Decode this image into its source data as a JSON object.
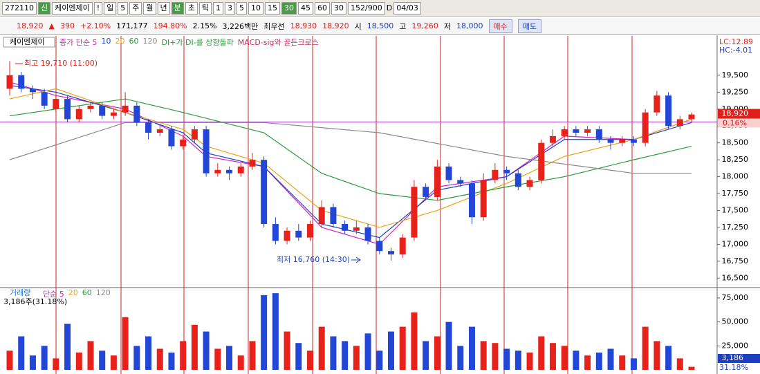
{
  "toolbar": {
    "code": "272110",
    "badge": "신",
    "name": "케이엔제이",
    "alert": "!",
    "period": "일",
    "period_n": "5",
    "buttons": [
      "주",
      "월",
      "년",
      "분",
      "초",
      "틱",
      "1",
      "3",
      "5",
      "10",
      "15",
      "30",
      "45",
      "60"
    ],
    "active_buttons": [
      3,
      11
    ],
    "count": "30",
    "range": "152/900",
    "d": "D",
    "date": "04/03"
  },
  "quote": {
    "price": "18,920",
    "arrow": "▲",
    "change": "390",
    "change_pct": "+2.10%",
    "volume": "171,177",
    "volume_ratio": "194.80%",
    "turnover": "2.15%",
    "amount": "3,226백만",
    "best_label": "최우선",
    "ask": "18,930",
    "bid": "18,920",
    "open_label": "시",
    "open": "18,500",
    "high_label": "고",
    "high": "19,260",
    "low_label": "저",
    "low": "18,000",
    "buy": "매수",
    "sell": "매도"
  },
  "chart_data": [
    {
      "type": "candlestick",
      "title": "케이엔제이",
      "signals": [
        "DI+가 DI-를 상향돌파",
        "MACD-sig와 골든크로스"
      ],
      "up_color": "#e8221b",
      "down_color": "#2247d6",
      "open": [
        19300,
        19500,
        19300,
        19250,
        19000,
        19150,
        18850,
        19000,
        19050,
        18900,
        18950,
        19050,
        18800,
        18650,
        18700,
        18450,
        18550,
        18700,
        18050,
        18100,
        18050,
        18150,
        18250,
        17300,
        17050,
        17200,
        17100,
        17300,
        17550,
        17300,
        17200,
        17250,
        17050,
        16900,
        16850,
        17100,
        17850,
        17700,
        18150,
        17950,
        17900,
        17400,
        17950,
        18100,
        18050,
        17850,
        17950,
        18500,
        18600,
        18700,
        18650,
        18700,
        18550,
        18500,
        18550,
        18500,
        18950,
        19200,
        18750,
        18850
      ],
      "high": [
        19710,
        19550,
        19350,
        19300,
        19200,
        19200,
        19050,
        19100,
        19100,
        19000,
        19250,
        19100,
        18850,
        18750,
        18750,
        18600,
        18750,
        18750,
        18200,
        18150,
        18200,
        18350,
        18300,
        17400,
        17250,
        17300,
        17350,
        17650,
        17600,
        17350,
        17350,
        17300,
        17100,
        16950,
        17150,
        17950,
        17900,
        18250,
        18200,
        18000,
        17950,
        18050,
        18200,
        18150,
        18100,
        18000,
        18550,
        18700,
        18750,
        18750,
        18750,
        18750,
        18600,
        18600,
        18600,
        19000,
        19270,
        19250,
        18900,
        18950
      ],
      "low": [
        19200,
        19250,
        19150,
        19000,
        18950,
        18800,
        18800,
        18950,
        18850,
        18850,
        18900,
        18750,
        18550,
        18600,
        18400,
        18400,
        18500,
        18000,
        18000,
        17950,
        18000,
        18100,
        17250,
        17000,
        17000,
        17050,
        17050,
        17250,
        17250,
        17150,
        17150,
        17000,
        16850,
        16760,
        16800,
        17050,
        17650,
        17650,
        17900,
        17850,
        17300,
        17350,
        17900,
        17950,
        17800,
        17800,
        17900,
        18450,
        18550,
        18600,
        18600,
        18500,
        18400,
        18450,
        18450,
        18450,
        18900,
        18700,
        18700,
        18800
      ],
      "close": [
        19500,
        19300,
        19250,
        19050,
        19150,
        18850,
        19000,
        19050,
        18900,
        18950,
        19050,
        18800,
        18650,
        18700,
        18450,
        18550,
        18700,
        18050,
        18100,
        18050,
        18150,
        18250,
        17300,
        17050,
        17200,
        17100,
        17300,
        17550,
        17300,
        17200,
        17250,
        17050,
        16900,
        16850,
        17100,
        17850,
        17700,
        18150,
        17950,
        17900,
        17400,
        17950,
        18100,
        18050,
        17850,
        17950,
        18500,
        18600,
        18700,
        18650,
        18700,
        18550,
        18500,
        18550,
        18500,
        18950,
        19200,
        18750,
        18850,
        18920
      ],
      "series": [
        {
          "name": "종가 단순 5",
          "color": "#d020c8",
          "x": [
            0,
            4,
            10,
            15,
            17,
            22,
            27,
            32,
            37,
            43,
            48,
            54,
            59
          ],
          "values": [
            19400,
            19200,
            19000,
            18600,
            18300,
            18150,
            17250,
            17000,
            17850,
            18000,
            18600,
            18550,
            18850
          ]
        },
        {
          "name": "10",
          "color": "#1f3fbf",
          "x": [
            0,
            4,
            10,
            15,
            17,
            22,
            27,
            32,
            37,
            43,
            48,
            54,
            59
          ],
          "values": [
            19350,
            19250,
            18950,
            18650,
            18350,
            18150,
            17300,
            17100,
            17800,
            18000,
            18550,
            18550,
            18800
          ]
        },
        {
          "name": "20",
          "color": "#e8a317",
          "x": [
            0,
            4,
            10,
            15,
            17,
            22,
            27,
            32,
            37,
            43,
            48,
            54,
            59
          ],
          "values": [
            19150,
            19300,
            18950,
            18700,
            18450,
            18200,
            17500,
            17250,
            17500,
            17900,
            18300,
            18550,
            18850
          ]
        },
        {
          "name": "60",
          "color": "#2a9a3a",
          "x": [
            0,
            10,
            15,
            22,
            27,
            32,
            37,
            43,
            48,
            54,
            59
          ],
          "values": [
            18900,
            19150,
            18950,
            18650,
            18050,
            17750,
            17650,
            17850,
            18000,
            18250,
            18450
          ]
        },
        {
          "name": "120",
          "color": "#8a8a8a",
          "x": [
            0,
            10,
            22,
            32,
            43,
            54,
            59
          ],
          "values": [
            18250,
            18800,
            18800,
            18650,
            18300,
            18050,
            18050
          ]
        }
      ],
      "reference_level": 18810,
      "reference_color": "#9b30c8",
      "ylim": [
        16370,
        20020
      ],
      "yticks": [
        {
          "value": 16500,
          "label": "16,500"
        },
        {
          "value": 16750,
          "label": "16,750"
        },
        {
          "value": 17000,
          "label": "17,000"
        },
        {
          "value": 17250,
          "label": "17,250"
        },
        {
          "value": 17500,
          "label": "17,500"
        },
        {
          "value": 17750,
          "label": "17,750"
        },
        {
          "value": 18000,
          "label": "18,000"
        },
        {
          "value": 18250,
          "label": "18,250"
        },
        {
          "value": 18500,
          "label": "18,500"
        },
        {
          "value": 18750,
          "label": "18,750"
        },
        {
          "value": 19000,
          "label": "19,000"
        },
        {
          "value": 19250,
          "label": "19,250"
        },
        {
          "value": 19500,
          "label": "19,500"
        }
      ],
      "annotations": [
        "최고 19,710 (11:00)",
        "최저 16,760 (14:30)"
      ],
      "lc": "LC:12.89",
      "hc": "HC:-4.01",
      "last_label": "18,920",
      "last_pct": "0.16%",
      "grid": false
    },
    {
      "type": "bar",
      "title": "거래량",
      "legend": [
        "단순 5",
        "20",
        "60",
        "120"
      ],
      "legend_colors": [
        "#d020c8",
        "#e8a317",
        "#2a9a3a",
        "#8a8a8a"
      ],
      "values": [
        20000,
        35000,
        15000,
        25000,
        12000,
        48000,
        18000,
        30000,
        20000,
        15000,
        55000,
        25000,
        35000,
        22000,
        18000,
        30000,
        47000,
        40000,
        22000,
        25000,
        15000,
        30000,
        78000,
        80000,
        40000,
        28000,
        20000,
        45000,
        35000,
        30000,
        25000,
        38000,
        20000,
        40000,
        45000,
        60000,
        30000,
        35000,
        50000,
        25000,
        45000,
        30000,
        28000,
        22000,
        20000,
        18000,
        35000,
        28000,
        25000,
        20000,
        15000,
        18000,
        22000,
        15000,
        12000,
        45000,
        30000,
        25000,
        12000,
        3186
      ],
      "ylim": [
        0,
        84400
      ],
      "yticks": [
        {
          "value": 25000,
          "label": "25,000"
        },
        {
          "value": 50000,
          "label": "50,000"
        },
        {
          "value": 75000,
          "label": "75,000"
        }
      ],
      "info": "3,186주(31.18%)",
      "last_label": "3,186",
      "last_pct": "31.18%",
      "grid": false
    }
  ]
}
